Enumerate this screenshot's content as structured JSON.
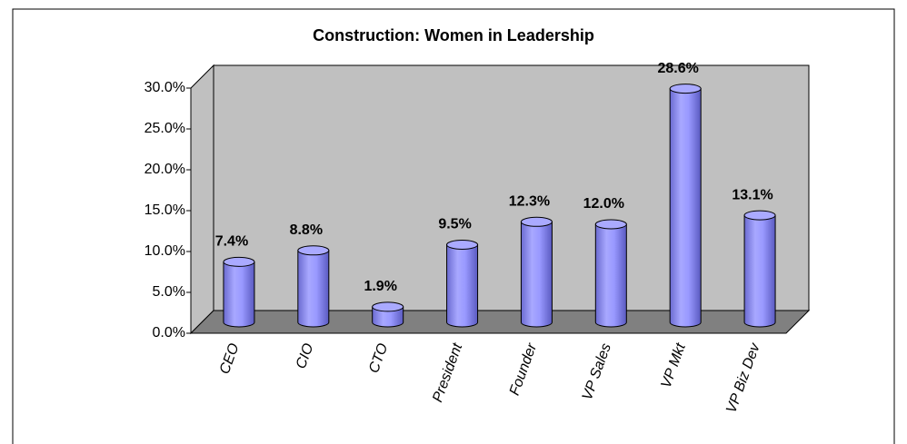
{
  "chart_data": {
    "type": "bar3d",
    "title": "Construction: Women in Leadership",
    "categories": [
      "CEO",
      "CIO",
      "CTO",
      "President",
      "Founder",
      "VP Sales",
      "VP Mkt",
      "VP Biz Dev"
    ],
    "values": [
      7.4,
      8.8,
      1.9,
      9.5,
      12.3,
      12.0,
      28.6,
      13.1
    ],
    "value_labels": [
      "7.4%",
      "8.8%",
      "1.9%",
      "9.5%",
      "12.3%",
      "12.0%",
      "28.6%",
      "13.1%"
    ],
    "color": "#9999ff",
    "ylim": [
      0,
      30
    ],
    "yticks": [
      {
        "value": 0,
        "label": "0.0%"
      },
      {
        "value": 5,
        "label": "5.0%"
      },
      {
        "value": 10,
        "label": "10.0%"
      },
      {
        "value": 15,
        "label": "15.0%"
      },
      {
        "value": 20,
        "label": "20.0%"
      },
      {
        "value": 25,
        "label": "25.0%"
      },
      {
        "value": 30,
        "label": "30.0%"
      }
    ]
  }
}
